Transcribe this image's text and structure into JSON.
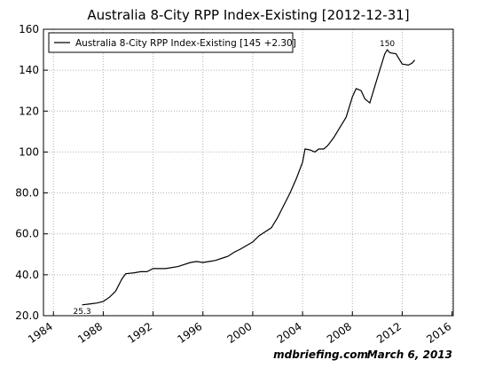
{
  "chart_data": {
    "type": "line",
    "title": "Australia 8-City RPP Index-Existing  [2012-12-31]",
    "x": [
      1986.3,
      1987,
      1987.5,
      1988,
      1988.5,
      1989,
      1989.5,
      1989.8,
      1990.5,
      1991,
      1991.5,
      1992,
      1993,
      1994,
      1995,
      1995.5,
      1996,
      1996.5,
      1997,
      1998,
      1998.5,
      1999,
      2000,
      2000.5,
      2001,
      2001.5,
      2002,
      2002.5,
      2003,
      2003.5,
      2004,
      2004.2,
      2004.6,
      2005,
      2005.3,
      2005.7,
      2006,
      2006.5,
      2007,
      2007.5,
      2008,
      2008.3,
      2008.7,
      2009,
      2009.4,
      2009.8,
      2010.2,
      2010.6,
      2010.8,
      2011,
      2011.5,
      2012,
      2012.5,
      2012.8,
      2013
    ],
    "series": [
      {
        "name": "Australia 8-City RPP Index-Existing [145 +2.30]",
        "color": "#000000",
        "values": [
          25.3,
          25.8,
          26.2,
          27,
          29,
          32,
          38,
          40.5,
          41,
          41.5,
          41.5,
          43,
          43,
          44,
          46,
          46.5,
          46,
          46.5,
          47,
          49,
          51,
          52.5,
          56,
          59,
          61,
          63,
          68,
          74,
          80,
          87,
          95,
          101.5,
          101,
          100,
          101.5,
          101.5,
          103,
          107,
          112,
          117,
          127,
          131,
          130,
          126,
          124,
          132,
          140,
          148,
          150,
          148.5,
          148,
          143,
          142.5,
          143.5,
          145
        ]
      }
    ],
    "annotations": [
      {
        "text": "25.3",
        "index": 0
      },
      {
        "text": "150",
        "index": 48
      }
    ],
    "xlim": [
      1983.2,
      2016.1
    ],
    "xticks": [
      1984,
      1988,
      1992,
      1996,
      2000,
      2004,
      2008,
      2012,
      2016
    ],
    "ylim": [
      20,
      160
    ],
    "yticks": [
      {
        "value": 20,
        "label": "20.0"
      },
      {
        "value": 40,
        "label": "40.0"
      },
      {
        "value": 60,
        "label": "60.0"
      },
      {
        "value": 80,
        "label": "80.0"
      },
      100,
      120,
      140,
      160
    ],
    "grid": true,
    "legend": "upper left",
    "footer": {
      "site": "mdbriefing.com",
      "date": "March 6, 2013"
    }
  }
}
